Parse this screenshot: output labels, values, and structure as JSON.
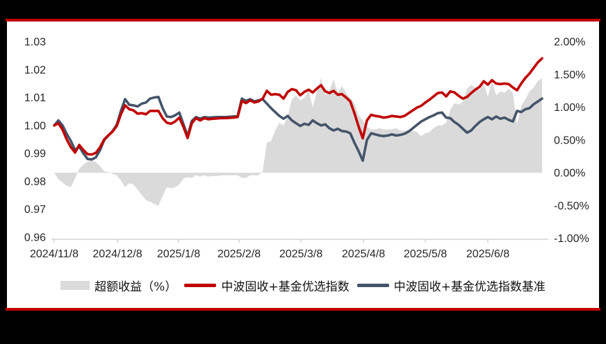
{
  "page": {
    "background": "#000000",
    "panel_background": "#ffffff",
    "rule_color": "#c00000"
  },
  "chart_data": {
    "type": "line+area",
    "title": "",
    "legend_position": "bottom",
    "x_axis": {
      "tick_labels": [
        "2024/11/8",
        "2024/12/8",
        "2025/1/8",
        "2025/2/8",
        "2025/3/8",
        "2025/4/8",
        "2025/5/8",
        "2025/6/8"
      ],
      "start": "2024/11/8",
      "end": "2025/7/4",
      "sampling": "118 evenly spaced points between start and end (values estimated from plot)"
    },
    "left_axis": {
      "ticks": [
        "1.03",
        "1.02",
        "1.01",
        "1.00",
        "0.99",
        "0.98",
        "0.97",
        "0.96"
      ],
      "min": 0.96,
      "max": 1.03
    },
    "right_axis": {
      "ticks": [
        "2.00%",
        "1.50%",
        "1.00%",
        "0.50%",
        "0.00%",
        "-0.50%",
        "-1.00%"
      ],
      "min": -1.0,
      "max": 2.0
    },
    "area_series": {
      "name": "超额收益（%）",
      "axis": "right",
      "color": "#dadada",
      "values": [
        0.0,
        -0.1,
        -0.15,
        -0.2,
        -0.22,
        -0.09,
        0.06,
        0.12,
        0.17,
        0.18,
        0.16,
        0.1,
        0.02,
        0.01,
        -0.02,
        -0.04,
        -0.12,
        -0.22,
        -0.16,
        -0.18,
        -0.26,
        -0.34,
        -0.42,
        -0.44,
        -0.48,
        -0.5,
        -0.36,
        -0.22,
        -0.24,
        -0.22,
        -0.18,
        -0.09,
        -0.07,
        -0.08,
        -0.04,
        -0.06,
        -0.04,
        -0.06,
        -0.05,
        -0.05,
        -0.04,
        -0.04,
        -0.04,
        -0.04,
        -0.04,
        -0.08,
        -0.08,
        -0.04,
        -0.04,
        -0.04,
        0.02,
        0.46,
        0.48,
        0.64,
        0.76,
        0.72,
        0.86,
        1.12,
        1.18,
        1.1,
        1.14,
        1.26,
        1.0,
        1.24,
        1.44,
        1.18,
        1.26,
        1.42,
        1.22,
        1.32,
        1.22,
        1.14,
        1.06,
        0.88,
        0.8,
        0.7,
        0.66,
        0.66,
        0.68,
        0.66,
        0.66,
        0.66,
        0.68,
        0.64,
        0.64,
        0.66,
        0.64,
        0.62,
        0.56,
        0.6,
        0.62,
        0.68,
        0.72,
        0.72,
        0.76,
        0.96,
        1.06,
        1.04,
        1.08,
        1.28,
        1.34,
        1.3,
        1.26,
        1.36,
        1.16,
        1.4,
        1.18,
        1.24,
        1.22,
        1.28,
        1.22,
        0.74,
        1.02,
        1.12,
        1.24,
        1.3,
        1.4,
        1.44
      ]
    },
    "series": [
      {
        "name": "中波固收+基金优选指数",
        "axis": "left",
        "color": "#c00000",
        "values": [
          1.0,
          1.0008,
          0.9985,
          0.995,
          0.9922,
          0.9903,
          0.993,
          0.9912,
          0.9897,
          0.9896,
          0.9902,
          0.9922,
          0.995,
          0.9965,
          0.9978,
          0.9998,
          1.004,
          1.0072,
          1.0058,
          1.0054,
          1.0042,
          1.0044,
          1.004,
          1.0052,
          1.0052,
          1.0052,
          1.0026,
          1.001,
          1.0006,
          1.0014,
          1.0028,
          0.9995,
          0.9955,
          1.0008,
          1.0026,
          1.0018,
          1.0026,
          1.0022,
          1.0024,
          1.0025,
          1.0026,
          1.0026,
          1.0027,
          1.0028,
          1.003,
          1.0088,
          1.008,
          1.009,
          1.0082,
          1.0086,
          1.0096,
          1.0124,
          1.011,
          1.0112,
          1.011,
          1.0096,
          1.012,
          1.013,
          1.0126,
          1.0108,
          1.012,
          1.0128,
          1.0118,
          1.0132,
          1.0144,
          1.0122,
          1.0116,
          1.0124,
          1.011,
          1.0112,
          1.01,
          1.0086,
          1.0044,
          0.9996,
          0.9954,
          1.0018,
          1.0038,
          1.0034,
          1.0032,
          1.0028,
          1.003,
          1.0034,
          1.0032,
          1.003,
          1.0034,
          1.0044,
          1.0054,
          1.0064,
          1.007,
          1.0082,
          1.0092,
          1.0104,
          1.0116,
          1.0118,
          1.0104,
          1.0122,
          1.0118,
          1.0106,
          1.0096,
          1.0102,
          1.0116,
          1.0128,
          1.0138,
          1.0158,
          1.0146,
          1.0162,
          1.015,
          1.0148,
          1.015,
          1.0148,
          1.0136,
          1.0126,
          1.015,
          1.017,
          1.0186,
          1.0206,
          1.0226,
          1.024
        ]
      },
      {
        "name": "中波固收+基金优选指数基准",
        "axis": "left",
        "color": "#44546a",
        "values": [
          1.0,
          1.0018,
          1.0,
          0.997,
          0.9944,
          0.9912,
          0.9924,
          0.99,
          0.988,
          0.9878,
          0.9886,
          0.9912,
          0.9948,
          0.9964,
          0.998,
          1.0002,
          1.0052,
          1.0094,
          1.0074,
          1.0072,
          1.0068,
          1.0078,
          1.0082,
          1.0096,
          1.01,
          1.0102,
          1.0062,
          1.0032,
          1.003,
          1.0036,
          1.0046,
          1.0004,
          0.9962,
          1.0016,
          1.003,
          1.0024,
          1.003,
          1.0028,
          1.0029,
          1.003,
          1.003,
          1.003,
          1.0031,
          1.0032,
          1.0034,
          1.0096,
          1.0088,
          1.0094,
          1.0086,
          1.009,
          1.0094,
          1.0078,
          1.0062,
          1.0048,
          1.0034,
          1.0024,
          1.0034,
          1.0018,
          1.0008,
          0.9998,
          1.0006,
          1.0002,
          1.0018,
          1.0008,
          1.0,
          1.0004,
          0.999,
          0.9982,
          0.9988,
          0.998,
          0.9978,
          0.9972,
          0.9938,
          0.9908,
          0.9874,
          0.9948,
          0.9972,
          0.9968,
          0.9964,
          0.9962,
          0.9964,
          0.9968,
          0.9964,
          0.9966,
          0.997,
          0.9978,
          0.999,
          1.0002,
          1.0014,
          1.0022,
          1.003,
          1.0036,
          1.0044,
          1.0046,
          1.0028,
          1.0026,
          1.0012,
          1.0002,
          0.9988,
          0.9974,
          0.9982,
          0.9998,
          1.0012,
          1.0022,
          1.003,
          1.0022,
          1.0032,
          1.0024,
          1.0028,
          1.002,
          1.0014,
          1.0052,
          1.0048,
          1.0058,
          1.0062,
          1.0076,
          1.0086,
          1.0096
        ]
      }
    ]
  }
}
